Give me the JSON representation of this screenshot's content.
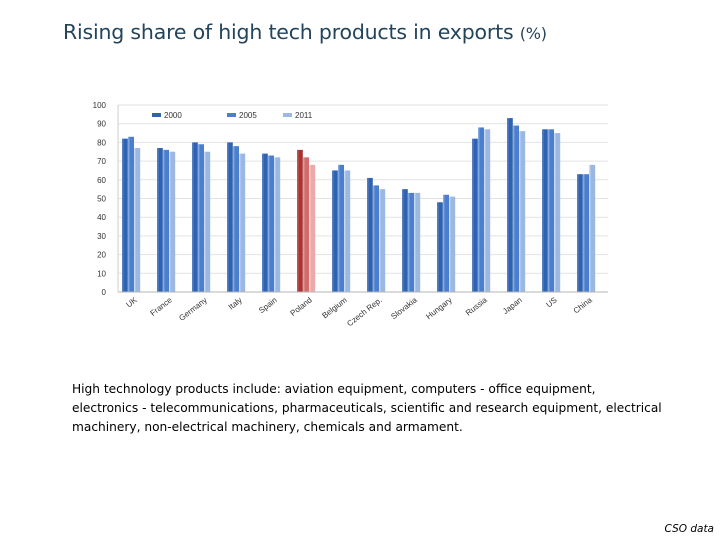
{
  "slide": {
    "title": "Rising share of high tech products in exports",
    "title_unit": "(%)",
    "description": "High technology products include: aviation equipment, computers - office equipment, electronics - telecommunications, pharmaceuticals, scientific and research equipment, electrical machinery, non-electrical machinery, chemicals and armament.",
    "source": "CSO data"
  },
  "chart_data": {
    "type": "bar",
    "title": "Rising share of high tech products in exports (%)",
    "xlabel": "",
    "ylabel": "",
    "ylim": [
      0,
      100
    ],
    "yticks": [
      0,
      10,
      20,
      30,
      40,
      50,
      60,
      70,
      80,
      90,
      100
    ],
    "grid": true,
    "legend_position": "top",
    "categories": [
      "UK",
      "France",
      "Germany",
      "Italy",
      "Spain",
      "Poland",
      "Belgium",
      "Czech Rep.",
      "Slovakia",
      "Hungary",
      "Russia",
      "Japan",
      "US",
      "China"
    ],
    "highlight_category": "Poland",
    "series": [
      {
        "name": "2000",
        "color": "#2f62b0",
        "values": [
          82,
          77,
          80,
          80,
          74,
          76,
          65,
          61,
          55,
          48,
          82,
          93,
          87,
          63
        ]
      },
      {
        "name": "2005",
        "color": "#4a7fd0",
        "values": [
          83,
          76,
          79,
          78,
          73,
          72,
          68,
          57,
          53,
          52,
          88,
          89,
          87,
          63
        ]
      },
      {
        "name": "2011",
        "color": "#9bb8e3",
        "values": [
          77,
          75,
          75,
          74,
          72,
          68,
          65,
          55,
          53,
          51,
          87,
          86,
          85,
          68
        ]
      }
    ],
    "highlight_colors": [
      "#a93232",
      "#d36b6b",
      "#eaaaaa"
    ]
  }
}
